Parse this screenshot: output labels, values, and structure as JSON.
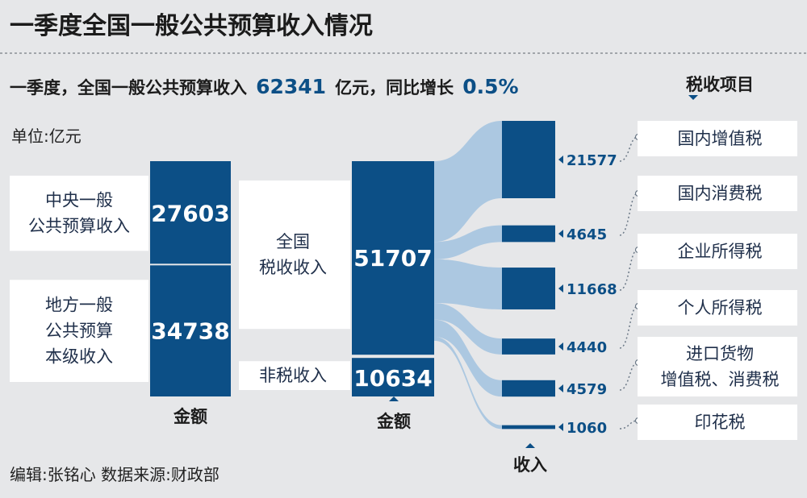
{
  "title": "一季度全国一般公共预算收入情况",
  "lead": {
    "prefix": "一季度，全国一般公共预算收入",
    "total": "62341",
    "middle": "亿元，同比增长",
    "growth": "0.5%"
  },
  "unit_label": "单位:亿元",
  "footer": "编辑:张铭心   数据来源:财政部",
  "colors": {
    "primary": "#0c4f86",
    "flow": "#a9c6e0",
    "background": "#e6e7e9",
    "label_box": "#ffffff"
  },
  "chart_data": {
    "type": "sankey",
    "unit": "亿元",
    "total": 62341,
    "growth_yoy": "0.5%",
    "by_level": {
      "caption": "金额",
      "items": [
        {
          "label_lines": [
            "中央一般",
            "公共预算收入"
          ],
          "value": 27603
        },
        {
          "label_lines": [
            "地方一般",
            "公共预算",
            "本级收入"
          ],
          "value": 34738
        }
      ]
    },
    "by_type": {
      "caption": "金额",
      "items": [
        {
          "label_lines": [
            "全国",
            "税收收入"
          ],
          "value": 51707
        },
        {
          "label_lines": [
            "非税收入"
          ],
          "value": 10634
        }
      ]
    },
    "tax_items": {
      "header": "税收项目",
      "caption": "收入",
      "items": [
        {
          "label_lines": [
            "国内增值税"
          ],
          "value": 21577
        },
        {
          "label_lines": [
            "国内消费税"
          ],
          "value": 4645
        },
        {
          "label_lines": [
            "企业所得税"
          ],
          "value": 11668
        },
        {
          "label_lines": [
            "个人所得税"
          ],
          "value": 4440
        },
        {
          "label_lines": [
            "进口货物",
            "增值税、消费税"
          ],
          "value": 4579
        },
        {
          "label_lines": [
            "印花税"
          ],
          "value": 1060
        }
      ]
    }
  }
}
